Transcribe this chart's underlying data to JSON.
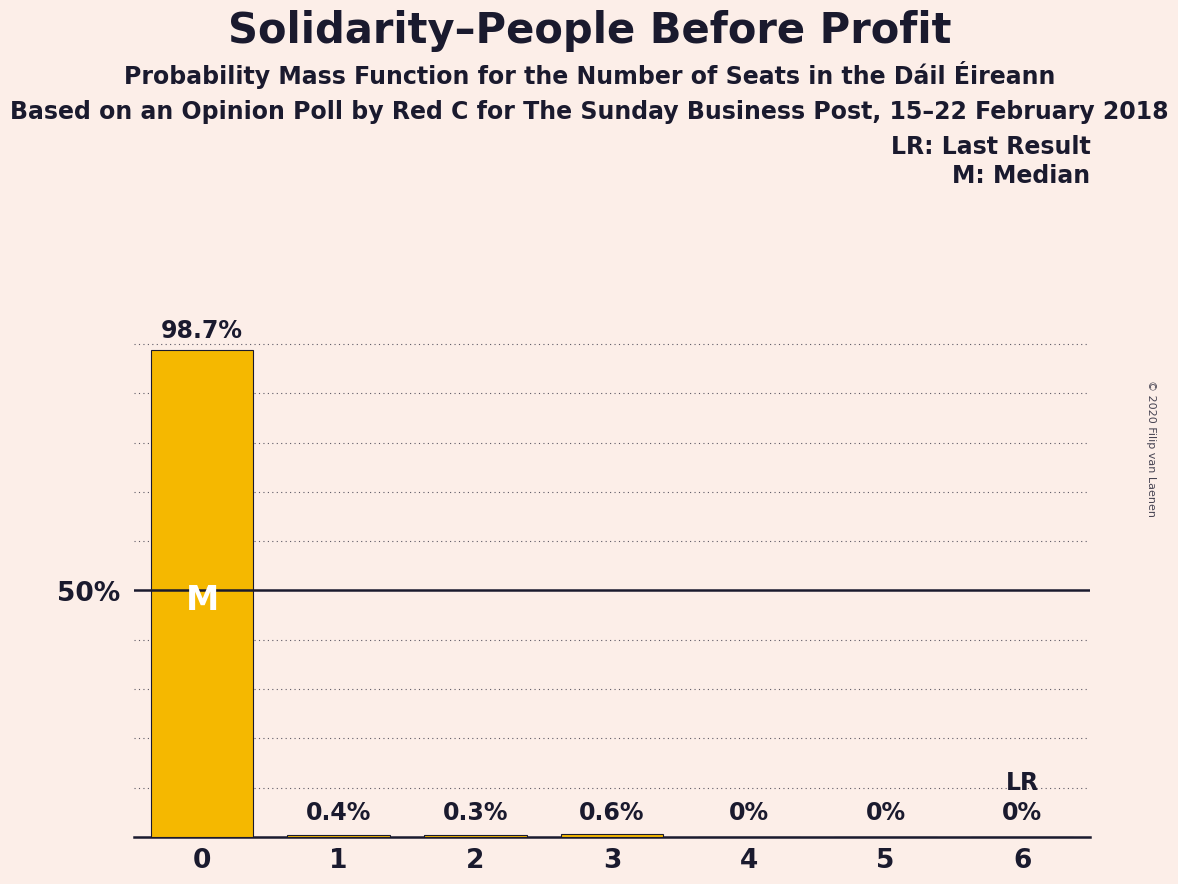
{
  "title": "Solidarity–People Before Profit",
  "subtitle": "Probability Mass Function for the Number of Seats in the Dáil Éireann",
  "source_line": "Based on an Opinion Poll by Red C for The Sunday Business Post, 15–22 February 2018",
  "copyright": "© 2020 Filip van Laenen",
  "categories": [
    0,
    1,
    2,
    3,
    4,
    5,
    6
  ],
  "values": [
    98.7,
    0.4,
    0.3,
    0.6,
    0.0,
    0.0,
    0.0
  ],
  "bar_color": "#F5B800",
  "bar_edge_color": "#1A1A2E",
  "background_color": "#FCEEE8",
  "text_color": "#1A1A2E",
  "label_50_pct": "50%",
  "median_seat": 0,
  "median_label": "M",
  "lr_seat": 6,
  "lr_label": "LR",
  "legend_lr": "LR: Last Result",
  "legend_m": "M: Median",
  "ylim": [
    0,
    105
  ],
  "dotted_yticks": [
    10,
    20,
    30,
    40,
    60,
    70,
    80,
    90,
    100
  ],
  "solid_ytick": 50,
  "value_labels": [
    "98.7%",
    "0.4%",
    "0.3%",
    "0.6%",
    "0%",
    "0%",
    "0%"
  ],
  "title_fontsize": 30,
  "subtitle_fontsize": 17,
  "source_fontsize": 17,
  "bar_label_fontsize": 17,
  "tick_fontsize": 19,
  "legend_fontsize": 17,
  "median_fontsize": 24,
  "lr_label_fontsize": 17,
  "copyright_fontsize": 8
}
